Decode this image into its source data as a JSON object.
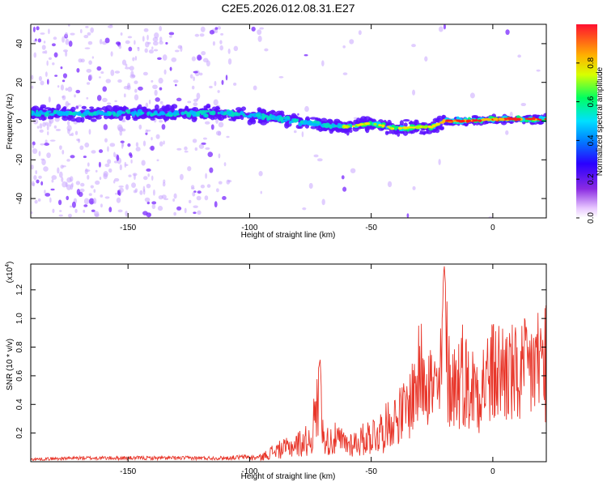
{
  "title": "C2E5.2026.012.08.31.E27",
  "colors": {
    "snr_line": "#e8362a",
    "band_core": "#ff2020",
    "band_mid": "#00d8ff",
    "band_outer": "#5a10ff",
    "scatter": "#8b3cff"
  },
  "chart_data": [
    {
      "type": "heatmap",
      "xlabel": "Height of straight line (km)",
      "ylabel": "Frequency (Hz)",
      "xlim": [
        -190,
        22
      ],
      "ylim": [
        -50,
        50
      ],
      "xticks": [
        -150,
        -100,
        -50,
        0
      ],
      "yticks": [
        -40,
        -20,
        0,
        20,
        40
      ],
      "xtick_labels": [
        "-150",
        "-100",
        "-50",
        "0"
      ],
      "ytick_labels": [
        "-40",
        "-20",
        "0",
        "20",
        "40"
      ],
      "colormap": "rainbow (purple → blue → cyan → green → yellow → red)",
      "colorbar": {
        "label": "Normalized spectral amplitude",
        "range": [
          0.0,
          1.0
        ],
        "ticks": [
          0.0,
          0.2,
          0.4,
          0.6,
          0.8
        ],
        "tick_labels": [
          "0.0",
          "0.2",
          "0.4",
          "0.6",
          "0.8"
        ]
      },
      "ridge": {
        "x": [
          -190,
          -150,
          -130,
          -110,
          -100,
          -90,
          -80,
          -70,
          -60,
          -50,
          -40,
          -30,
          -25,
          -20,
          -10,
          0,
          10,
          22
        ],
        "frequency": [
          4,
          4,
          4,
          4,
          3,
          2,
          0,
          -2,
          -3,
          -1,
          -4,
          -3,
          -3,
          0,
          0,
          1,
          1,
          1
        ],
        "amplitude": [
          0.25,
          0.3,
          0.35,
          0.35,
          0.4,
          0.45,
          0.5,
          0.5,
          0.5,
          0.7,
          0.6,
          0.55,
          0.6,
          0.9,
          0.9,
          0.9,
          0.9,
          0.9
        ]
      }
    },
    {
      "type": "line",
      "xlabel": "Height of straight line (km)",
      "ylabel": "SNR (10 * v/v)",
      "y_multiplier": "(x10^4)",
      "y_multiplier_base": "(x10",
      "y_multiplier_exp": "4",
      "xlim": [
        -190,
        22
      ],
      "ylim": [
        0,
        1.38
      ],
      "xticks": [
        -150,
        -100,
        -50,
        0
      ],
      "yticks": [
        0.2,
        0.4,
        0.6,
        0.8,
        1.0,
        1.2
      ],
      "xtick_labels": [
        "-150",
        "-100",
        "-50",
        "0"
      ],
      "ytick_labels": [
        "0.2",
        "0.4",
        "0.6",
        "0.8",
        "1.0",
        "1.2"
      ],
      "series": [
        {
          "x": [
            -190,
            -170,
            -150,
            -130,
            -110,
            -100,
            -95,
            -90,
            -85,
            -80,
            -75,
            -71,
            -70,
            -69,
            -65,
            -60,
            -55,
            -50,
            -45,
            -40,
            -35,
            -30,
            -28,
            -25,
            -22,
            -20,
            -18,
            -15,
            -12,
            -10,
            -5,
            0,
            5,
            10,
            15,
            20,
            22
          ],
          "values": [
            0.02,
            0.03,
            0.03,
            0.03,
            0.03,
            0.04,
            0.05,
            0.12,
            0.15,
            0.2,
            0.25,
            0.72,
            0.3,
            0.22,
            0.25,
            0.2,
            0.22,
            0.3,
            0.35,
            0.45,
            0.55,
            0.9,
            1.05,
            0.75,
            0.7,
            1.38,
            0.85,
            0.8,
            0.95,
            0.75,
            0.8,
            0.9,
            0.95,
            0.85,
            0.95,
            1.05,
            1.1
          ]
        }
      ]
    }
  ]
}
